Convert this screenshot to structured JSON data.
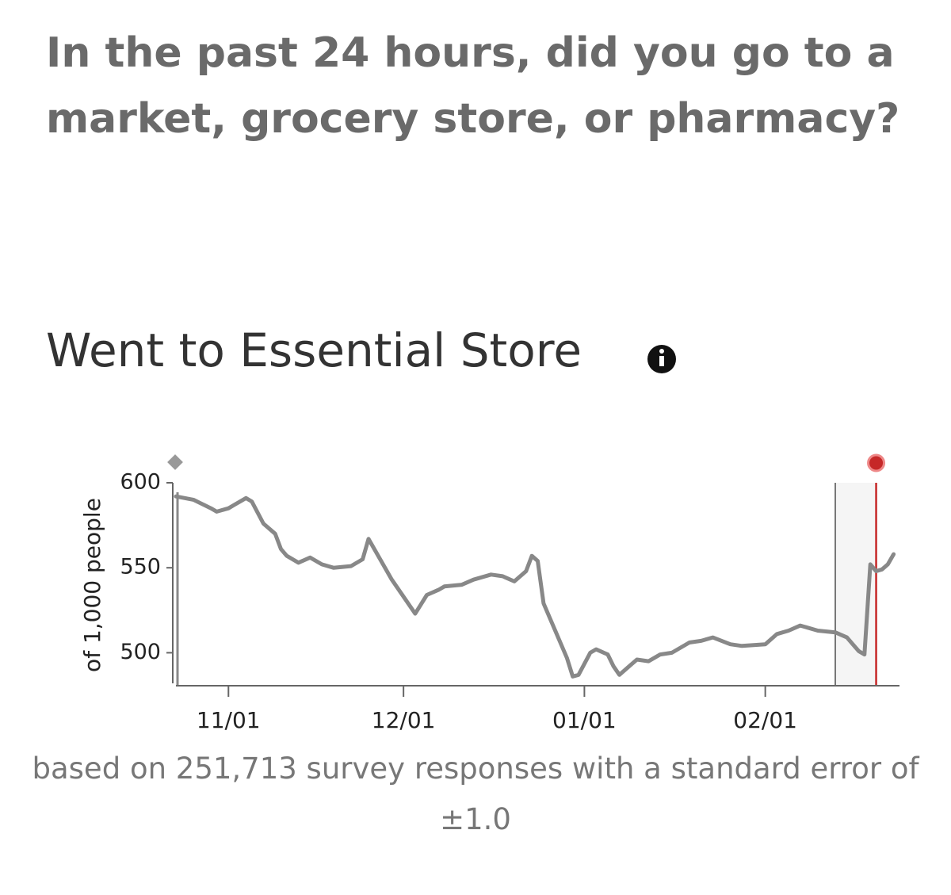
{
  "question": "In the past 24 hours, did you go to a market, grocery store, or pharmacy?",
  "chart_data": {
    "type": "line",
    "title": "Went to Essential Store",
    "ylabel": "of 1,000 people",
    "note": "based on 251,713 survey responses with a standard error of ±1.0",
    "x": [
      "10/23",
      "10/26",
      "10/29",
      "10/30",
      "11/01",
      "11/02",
      "11/04",
      "11/05",
      "11/07",
      "11/09",
      "11/10",
      "11/11",
      "11/13",
      "11/15",
      "11/17",
      "11/19",
      "11/22",
      "11/24",
      "11/25",
      "11/27",
      "11/29",
      "12/01",
      "12/03",
      "12/05",
      "12/07",
      "12/08",
      "12/11",
      "12/13",
      "12/16",
      "12/18",
      "12/20",
      "12/22",
      "12/23",
      "12/24",
      "12/25",
      "12/27",
      "12/29",
      "12/30",
      "12/31",
      "01/02",
      "01/03",
      "01/05",
      "01/06",
      "01/07",
      "01/09",
      "01/10",
      "01/12",
      "01/14",
      "01/16",
      "01/19",
      "01/21",
      "01/23",
      "01/26",
      "01/28",
      "02/01",
      "02/03",
      "02/05",
      "02/07",
      "02/10",
      "02/13",
      "02/15",
      "02/16",
      "02/17",
      "02/18",
      "02/19",
      "02/20",
      "02/21",
      "02/22",
      "02/23"
    ],
    "values": [
      592,
      590,
      585,
      583,
      585,
      587,
      591,
      589,
      576,
      570,
      561,
      557,
      553,
      556,
      552,
      550,
      551,
      555,
      567,
      555,
      543,
      533,
      523,
      534,
      537,
      539,
      540,
      543,
      546,
      545,
      542,
      548,
      557,
      554,
      529,
      513,
      497,
      486,
      487,
      500,
      502,
      499,
      492,
      487,
      493,
      496,
      495,
      499,
      500,
      506,
      507,
      509,
      505,
      504,
      505,
      511,
      513,
      516,
      513,
      512,
      509,
      505,
      501,
      499,
      552,
      548,
      549,
      552,
      558
    ],
    "color": "#888888",
    "xlim": [
      "10/23",
      "02/24"
    ],
    "xticks": [
      "11/01",
      "12/01",
      "01/01",
      "02/01"
    ],
    "ylim": [
      482,
      600
    ],
    "yticks": [
      500,
      550,
      600
    ],
    "highlight": {
      "start": "02/13",
      "end": "02/20",
      "color": "#c62828"
    }
  }
}
